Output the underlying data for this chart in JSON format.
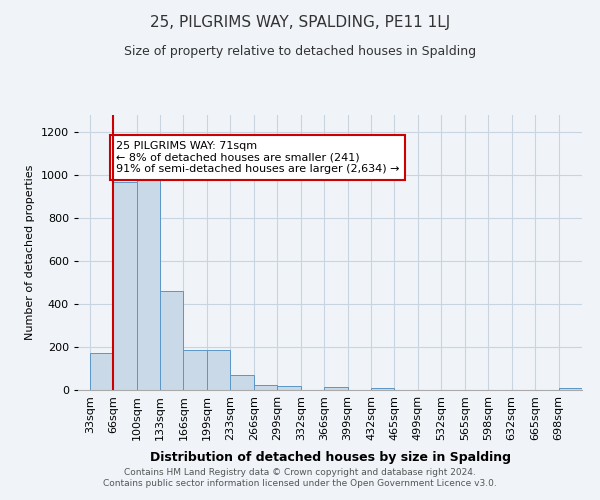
{
  "title": "25, PILGRIMS WAY, SPALDING, PE11 1LJ",
  "subtitle": "Size of property relative to detached houses in Spalding",
  "xlabel": "Distribution of detached houses by size in Spalding",
  "ylabel": "Number of detached properties",
  "bar_labels": [
    "33sqm",
    "66sqm",
    "100sqm",
    "133sqm",
    "166sqm",
    "199sqm",
    "233sqm",
    "266sqm",
    "299sqm",
    "332sqm",
    "366sqm",
    "399sqm",
    "432sqm",
    "465sqm",
    "499sqm",
    "532sqm",
    "565sqm",
    "598sqm",
    "632sqm",
    "665sqm",
    "698sqm"
  ],
  "bar_values": [
    170,
    970,
    990,
    460,
    185,
    185,
    70,
    25,
    20,
    0,
    12,
    0,
    10,
    0,
    0,
    0,
    0,
    0,
    0,
    0,
    8
  ],
  "bar_color": "#c9d9e8",
  "bar_edge_color": "#5a96c8",
  "vline_color": "#cc0000",
  "vline_x_index": 1.5,
  "annotation_text": "25 PILGRIMS WAY: 71sqm\n← 8% of detached houses are smaller (241)\n91% of semi-detached houses are larger (2,634) →",
  "annotation_box_color": "#ffffff",
  "annotation_box_edge": "#cc0000",
  "ylim": [
    0,
    1280
  ],
  "yticks": [
    0,
    200,
    400,
    600,
    800,
    1000,
    1200
  ],
  "footer_line1": "Contains HM Land Registry data © Crown copyright and database right 2024.",
  "footer_line2": "Contains public sector information licensed under the Open Government Licence v3.0.",
  "background_color": "#f0f4f8",
  "plot_background": "#f0f4f8",
  "grid_color": "#c8d4e0",
  "title_fontsize": 11,
  "subtitle_fontsize": 9,
  "ylabel_fontsize": 8,
  "xlabel_fontsize": 9,
  "tick_fontsize": 8,
  "annotation_fontsize": 8
}
